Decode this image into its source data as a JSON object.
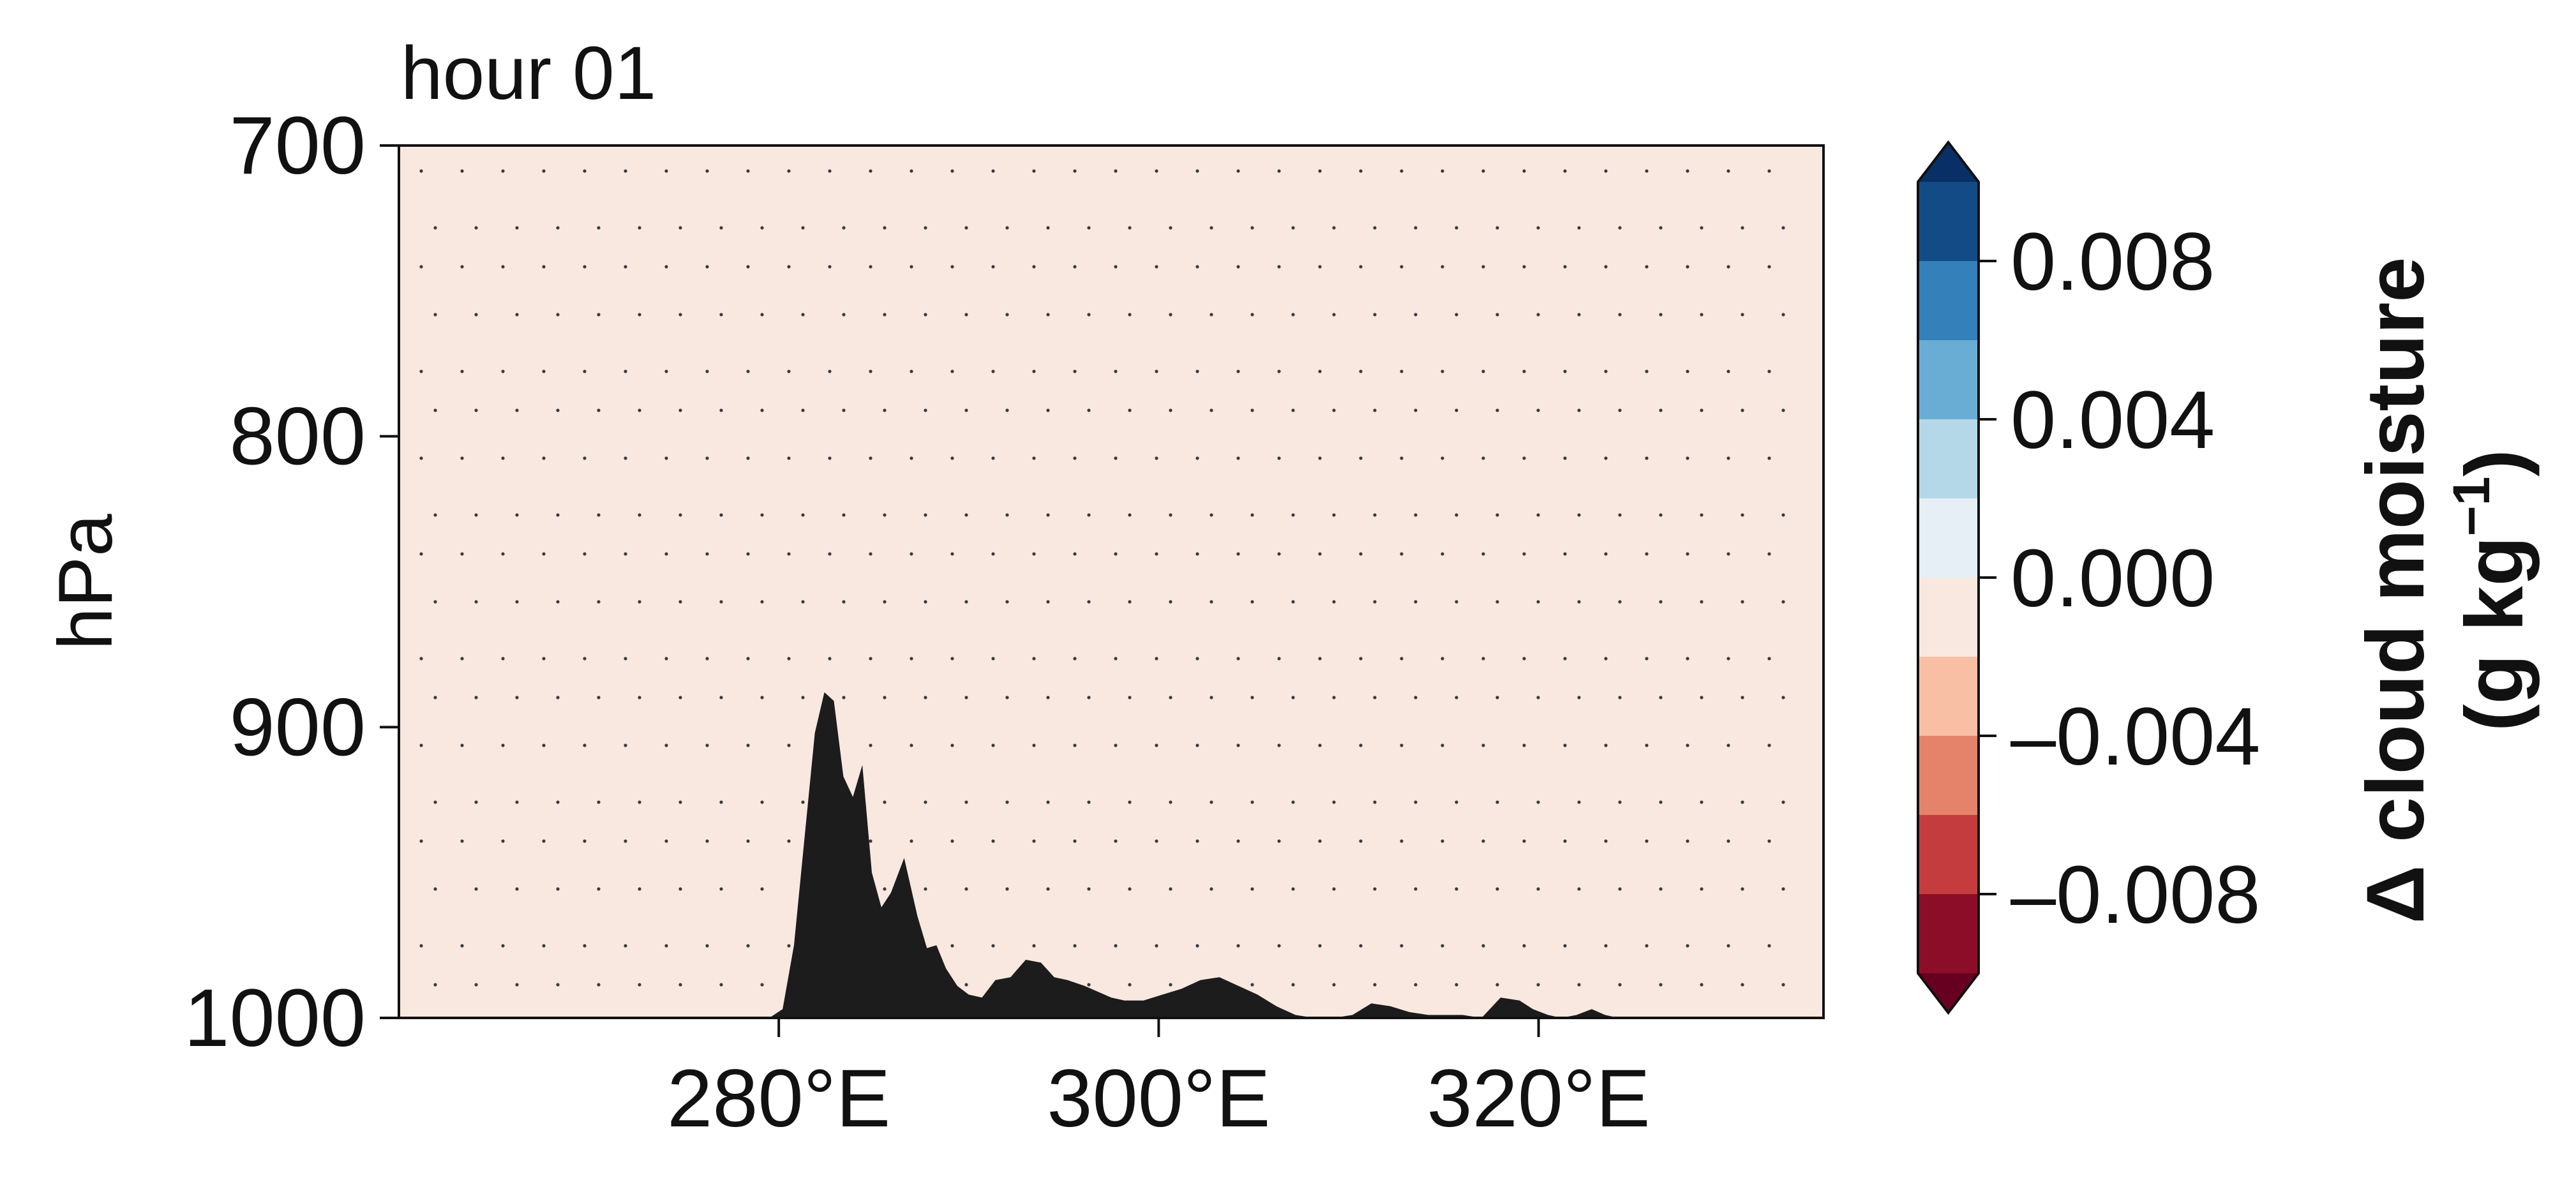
{
  "chart_data": {
    "type": "heatmap",
    "title": "hour 01",
    "ylabel": "hPa",
    "xlabel": "",
    "y_axis": {
      "direction": "inverted",
      "range": [
        700,
        1000
      ],
      "ticks": [
        "700",
        "800",
        "900",
        "1000"
      ]
    },
    "x_axis": {
      "range": [
        260,
        335
      ],
      "ticks": [
        {
          "value": 280,
          "label": "280°E"
        },
        {
          "value": 300,
          "label": "300°E"
        },
        {
          "value": 320,
          "label": "320°E"
        }
      ]
    },
    "field": {
      "value": 0.0,
      "fill": "#f9e8df",
      "description_units": "g kg-1"
    },
    "stippling": true,
    "terrain": {
      "color": "#1c1c1c",
      "x": [
        260,
        279.5,
        280.2,
        280.8,
        281.4,
        281.9,
        282.4,
        282.9,
        283.4,
        283.9,
        284.4,
        284.9,
        285.4,
        285.9,
        286.6,
        287.3,
        287.8,
        288.3,
        288.8,
        289.4,
        290.0,
        290.7,
        291.4,
        292.2,
        293.0,
        293.8,
        294.5,
        295.2,
        296.1,
        296.8,
        297.5,
        298.2,
        299.2,
        300.2,
        301.2,
        302.2,
        303.2,
        304.2,
        305.2,
        306.2,
        307.2,
        308.2,
        309.2,
        310.2,
        311.2,
        312.2,
        313.2,
        314.2,
        315.0,
        316.0,
        317.0,
        318.0,
        319.0,
        319.7,
        320.5,
        321.2,
        322.0,
        322.8,
        323.5,
        324.2,
        325.0,
        326.0,
        335
      ],
      "pressure": [
        1000,
        1000,
        997,
        975,
        935,
        902,
        888,
        891,
        917,
        924,
        913,
        950,
        962,
        957,
        945,
        965,
        976,
        975,
        983,
        989,
        992,
        993,
        987,
        986,
        980,
        981,
        986,
        987,
        989,
        991,
        993,
        994,
        994,
        992,
        990,
        987,
        986,
        989,
        992,
        996,
        999,
        1000,
        1000,
        999,
        995,
        996,
        998,
        999,
        999,
        999,
        1000,
        993,
        994,
        997,
        999,
        1000,
        999,
        997,
        999,
        1000,
        1000,
        1000,
        1000
      ]
    }
  },
  "colorbar": {
    "label_line1": "Δ cloud moisture",
    "label_line2_prefix": "(g kg",
    "label_line2_exponent": "−1",
    "label_line2_suffix": ")",
    "extend": "both",
    "ticks": [
      {
        "value": 0.008,
        "label": "0.008"
      },
      {
        "value": 0.004,
        "label": "0.004"
      },
      {
        "value": 0.0,
        "label": "0.000"
      },
      {
        "value": -0.004,
        "label": "–0.004"
      },
      {
        "value": -0.008,
        "label": "–0.008"
      }
    ],
    "levels": [
      {
        "lo": 0.008,
        "hi": 0.01,
        "color": "#134b87"
      },
      {
        "lo": 0.006,
        "hi": 0.008,
        "color": "#3480bb"
      },
      {
        "lo": 0.004,
        "hi": 0.006,
        "color": "#6aadd4"
      },
      {
        "lo": 0.002,
        "hi": 0.004,
        "color": "#b5d8e8"
      },
      {
        "lo": 0.0,
        "hi": 0.002,
        "color": "#e6eff5"
      },
      {
        "lo": -0.002,
        "hi": 0.0,
        "color": "#f9e8df"
      },
      {
        "lo": -0.004,
        "hi": -0.002,
        "color": "#f8bfa4"
      },
      {
        "lo": -0.006,
        "hi": -0.004,
        "color": "#e4836a"
      },
      {
        "lo": -0.008,
        "hi": -0.006,
        "color": "#c53c3e"
      },
      {
        "lo": -0.01,
        "hi": -0.008,
        "color": "#8b0d27"
      }
    ],
    "over_color": "#083066",
    "under_color": "#670020"
  }
}
